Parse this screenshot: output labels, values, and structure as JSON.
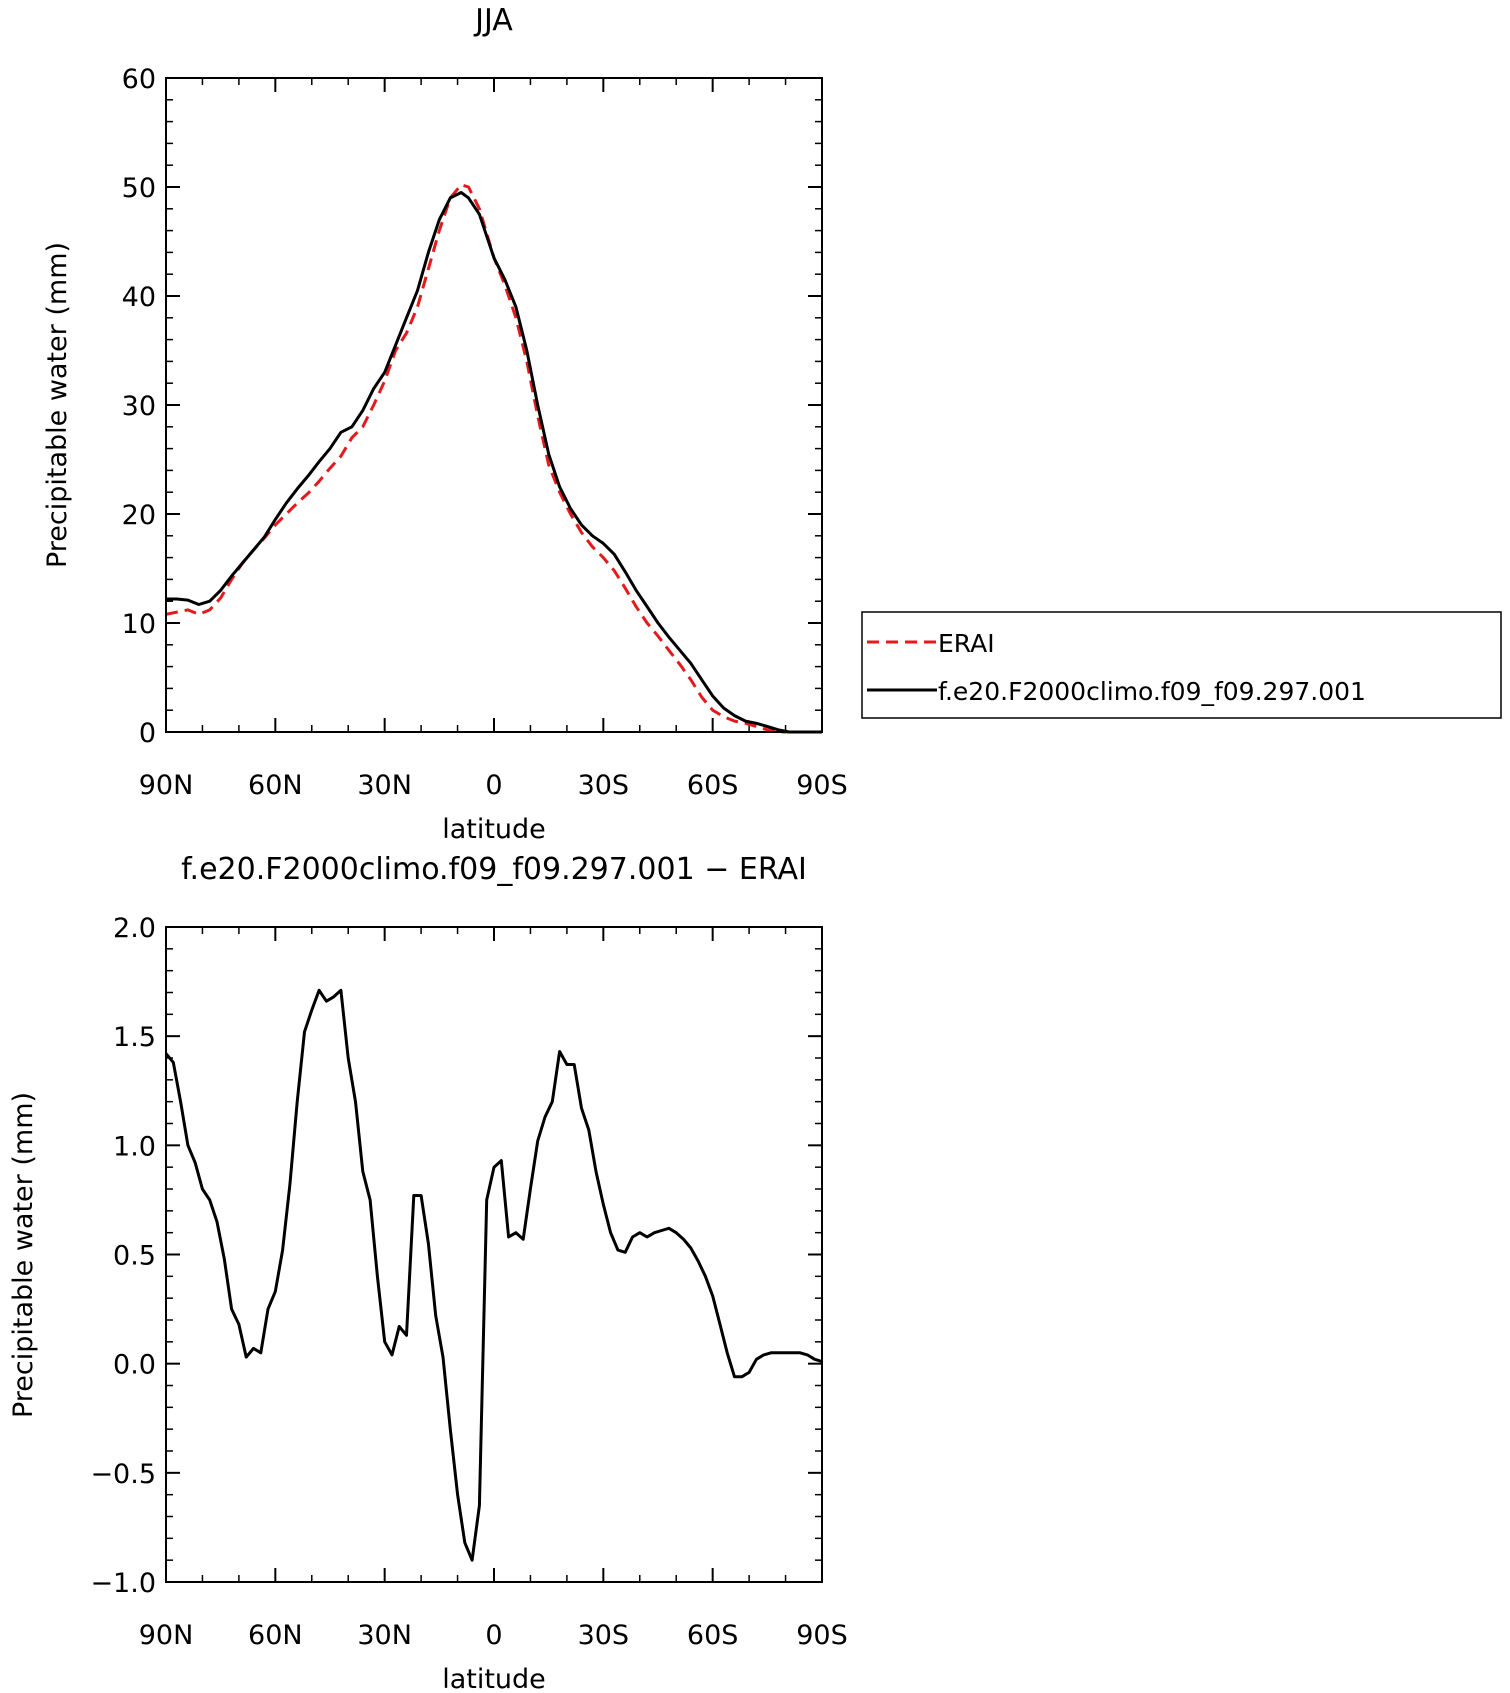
{
  "chart_data": [
    {
      "type": "line",
      "title": "JJA",
      "xlabel": "latitude",
      "ylabel": "Precipitable water (mm)",
      "xlim": [
        90,
        -90
      ],
      "ylim": [
        0,
        60
      ],
      "xticks": [
        90,
        60,
        30,
        0,
        -30,
        -60,
        -90
      ],
      "xtick_labels": [
        "90N",
        "60N",
        "30N",
        "0",
        "30S",
        "60S",
        "90S"
      ],
      "yticks": [
        0,
        10,
        20,
        30,
        40,
        50,
        60
      ],
      "ytick_labels": [
        "0",
        "10",
        "20",
        "30",
        "40",
        "50",
        "60"
      ],
      "legend_position": "right",
      "series": [
        {
          "name": "ERAI",
          "color": "#e41a1c",
          "style": "dashed",
          "x": [
            90,
            87,
            84,
            81,
            78,
            75,
            72,
            69,
            66,
            63,
            60,
            57,
            54,
            51,
            48,
            45,
            42,
            39,
            36,
            33,
            30,
            27,
            24,
            21,
            18,
            15,
            12,
            9,
            7,
            4,
            0,
            -3,
            -6,
            -9,
            -12,
            -15,
            -18,
            -21,
            -24,
            -27,
            -30,
            -33,
            -36,
            -39,
            -42,
            -45,
            -48,
            -51,
            -54,
            -57,
            -60,
            -63,
            -66,
            -69,
            -72,
            -75,
            -78,
            -81,
            -84,
            -87,
            -90
          ],
          "y": [
            10.8,
            11.0,
            11.2,
            10.8,
            11.2,
            12.3,
            14.0,
            15.5,
            16.7,
            17.8,
            19.0,
            20.0,
            21.0,
            21.9,
            23.0,
            24.2,
            25.3,
            27.0,
            28.0,
            30.0,
            32.2,
            35.0,
            36.6,
            39.0,
            42.5,
            46.0,
            49.0,
            50.2,
            50.0,
            48.0,
            43.5,
            41.0,
            38.0,
            34.0,
            29.0,
            24.5,
            22.0,
            20.0,
            18.3,
            17.0,
            16.0,
            14.8,
            13.2,
            11.5,
            10.0,
            8.8,
            7.5,
            6.2,
            4.8,
            3.2,
            2.0,
            1.4,
            1.0,
            0.8,
            0.5,
            0.2,
            0.0,
            0.0,
            0.0,
            0.0,
            0.0
          ]
        },
        {
          "name": "f.e20.F2000climo.f09_f09.297.001",
          "color": "#000000",
          "style": "solid",
          "x": [
            90,
            87,
            84,
            81,
            78,
            75,
            72,
            69,
            66,
            63,
            60,
            57,
            54,
            51,
            48,
            45,
            42,
            39,
            36,
            33,
            30,
            27,
            24,
            21,
            18,
            15,
            12,
            9,
            7,
            4,
            0,
            -3,
            -6,
            -9,
            -12,
            -15,
            -18,
            -21,
            -24,
            -27,
            -30,
            -33,
            -36,
            -39,
            -42,
            -45,
            -48,
            -51,
            -54,
            -57,
            -60,
            -63,
            -66,
            -69,
            -72,
            -75,
            -78,
            -81,
            -84,
            -87,
            -90
          ],
          "y": [
            12.2,
            12.2,
            12.1,
            11.7,
            12.0,
            13.0,
            14.3,
            15.5,
            16.7,
            17.9,
            19.5,
            21.0,
            22.3,
            23.5,
            24.8,
            26.0,
            27.5,
            28.0,
            29.5,
            31.5,
            33.0,
            35.5,
            38.0,
            40.5,
            44.0,
            47.0,
            49.0,
            49.5,
            49.0,
            47.5,
            43.5,
            41.5,
            39.0,
            35.0,
            30.0,
            25.5,
            22.5,
            20.5,
            19.0,
            18.0,
            17.3,
            16.3,
            14.7,
            13.0,
            11.5,
            10.0,
            8.7,
            7.5,
            6.3,
            4.8,
            3.3,
            2.2,
            1.5,
            1.0,
            0.8,
            0.5,
            0.2,
            0.0,
            0.0,
            0.0,
            0.0
          ]
        }
      ]
    },
    {
      "type": "line",
      "title": "f.e20.F2000climo.f09_f09.297.001 − ERAI",
      "xlabel": "latitude",
      "ylabel": "Precipitable water (mm)",
      "xlim": [
        90,
        -90
      ],
      "ylim": [
        -1.0,
        2.0
      ],
      "xticks": [
        90,
        60,
        30,
        0,
        -30,
        -60,
        -90
      ],
      "xtick_labels": [
        "90N",
        "60N",
        "30N",
        "0",
        "30S",
        "60S",
        "90S"
      ],
      "yticks": [
        -1.0,
        -0.5,
        0.0,
        0.5,
        1.0,
        1.5,
        2.0
      ],
      "ytick_labels": [
        "−1.0",
        "−0.5",
        "0.0",
        "0.5",
        "1.0",
        "1.5",
        "2.0"
      ],
      "series": [
        {
          "color": "#000000",
          "style": "solid",
          "x": [
            90,
            88,
            86,
            84,
            82,
            80,
            78,
            76,
            74,
            72,
            70,
            68,
            66,
            64,
            62,
            60,
            58,
            56,
            54,
            52,
            50,
            48,
            46,
            44,
            42,
            40,
            38,
            36,
            34,
            32,
            30,
            28,
            26,
            24,
            22,
            20,
            18,
            16,
            14,
            12,
            10,
            8,
            6,
            4,
            2,
            0,
            -2,
            -4,
            -6,
            -8,
            -10,
            -12,
            -14,
            -16,
            -18,
            -20,
            -22,
            -24,
            -26,
            -28,
            -30,
            -32,
            -34,
            -36,
            -38,
            -40,
            -42,
            -44,
            -46,
            -48,
            -50,
            -52,
            -54,
            -56,
            -58,
            -60,
            -62,
            -64,
            -66,
            -68,
            -70,
            -72,
            -74,
            -76,
            -78,
            -80,
            -82,
            -84,
            -86,
            -88,
            -90
          ],
          "y": [
            1.42,
            1.38,
            1.2,
            1.0,
            0.92,
            0.8,
            0.75,
            0.65,
            0.48,
            0.25,
            0.18,
            0.03,
            0.07,
            0.05,
            0.25,
            0.33,
            0.52,
            0.82,
            1.2,
            1.52,
            1.62,
            1.71,
            1.66,
            1.68,
            1.71,
            1.4,
            1.2,
            0.88,
            0.75,
            0.4,
            0.1,
            0.04,
            0.17,
            0.13,
            0.77,
            0.77,
            0.55,
            0.22,
            0.03,
            -0.3,
            -0.6,
            -0.82,
            -0.9,
            -0.65,
            0.75,
            0.9,
            0.93,
            0.58,
            0.6,
            0.57,
            0.8,
            1.02,
            1.13,
            1.2,
            1.43,
            1.37,
            1.37,
            1.17,
            1.07,
            0.88,
            0.73,
            0.6,
            0.52,
            0.51,
            0.58,
            0.6,
            0.58,
            0.6,
            0.61,
            0.62,
            0.6,
            0.57,
            0.53,
            0.47,
            0.4,
            0.31,
            0.18,
            0.05,
            -0.06,
            -0.06,
            -0.04,
            0.02,
            0.04,
            0.05,
            0.05,
            0.05,
            0.05,
            0.05,
            0.04,
            0.02,
            0.01
          ]
        }
      ]
    }
  ]
}
